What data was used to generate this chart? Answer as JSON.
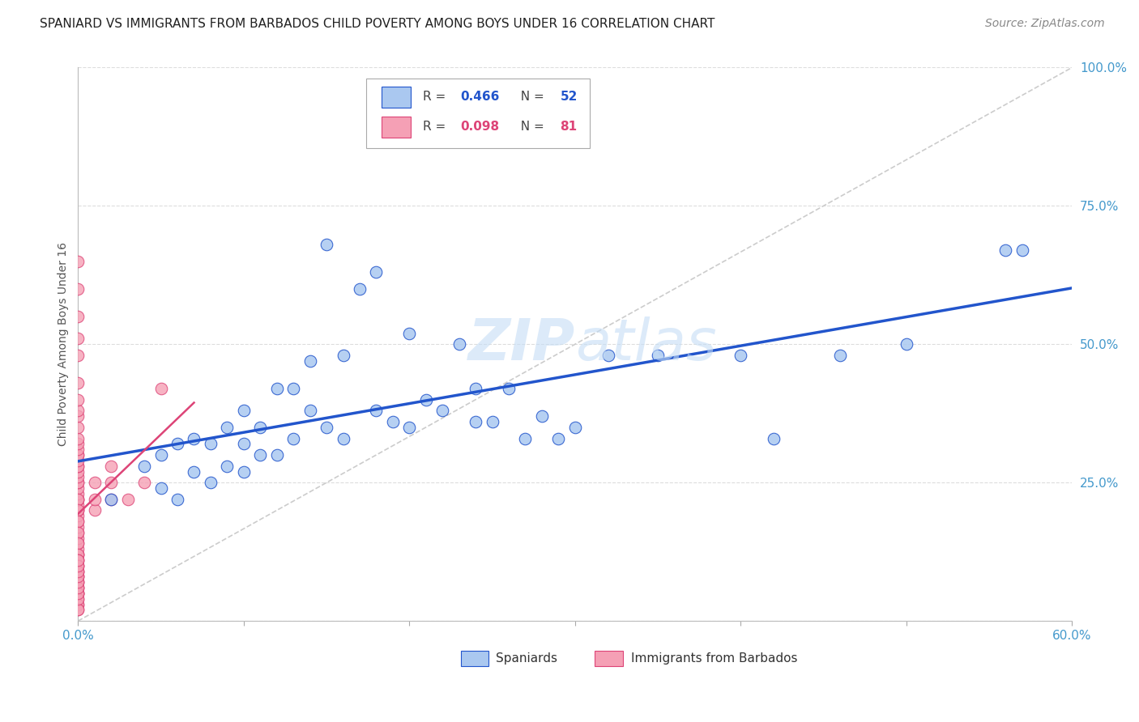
{
  "title": "SPANIARD VS IMMIGRANTS FROM BARBADOS CHILD POVERTY AMONG BOYS UNDER 16 CORRELATION CHART",
  "source": "Source: ZipAtlas.com",
  "ylabel": "Child Poverty Among Boys Under 16",
  "watermark": "ZIPatlas",
  "legend_blue_R": "0.466",
  "legend_blue_N": "52",
  "legend_pink_R": "0.098",
  "legend_pink_N": "81",
  "legend_blue_label": "Spaniards",
  "legend_pink_label": "Immigrants from Barbados",
  "xlim": [
    0.0,
    0.6
  ],
  "ylim": [
    0.0,
    1.0
  ],
  "blue_color": "#aac8f0",
  "blue_line_color": "#2255cc",
  "pink_color": "#f5a0b5",
  "pink_line_color": "#dd4477",
  "diag_line_color": "#cccccc",
  "background_color": "#ffffff",
  "blue_x": [
    0.02,
    0.04,
    0.05,
    0.05,
    0.06,
    0.06,
    0.07,
    0.07,
    0.08,
    0.08,
    0.09,
    0.09,
    0.1,
    0.1,
    0.1,
    0.11,
    0.11,
    0.12,
    0.12,
    0.13,
    0.13,
    0.14,
    0.14,
    0.15,
    0.15,
    0.16,
    0.16,
    0.17,
    0.18,
    0.18,
    0.19,
    0.2,
    0.2,
    0.21,
    0.22,
    0.23,
    0.24,
    0.24,
    0.25,
    0.26,
    0.27,
    0.28,
    0.29,
    0.3,
    0.32,
    0.35,
    0.4,
    0.42,
    0.46,
    0.5,
    0.56,
    0.57
  ],
  "blue_y": [
    0.22,
    0.28,
    0.24,
    0.3,
    0.22,
    0.32,
    0.27,
    0.33,
    0.25,
    0.32,
    0.28,
    0.35,
    0.27,
    0.32,
    0.38,
    0.3,
    0.35,
    0.3,
    0.42,
    0.33,
    0.42,
    0.38,
    0.47,
    0.35,
    0.68,
    0.33,
    0.48,
    0.6,
    0.38,
    0.63,
    0.36,
    0.35,
    0.52,
    0.4,
    0.38,
    0.5,
    0.36,
    0.42,
    0.36,
    0.42,
    0.33,
    0.37,
    0.33,
    0.35,
    0.48,
    0.48,
    0.48,
    0.33,
    0.48,
    0.5,
    0.67,
    0.67
  ],
  "pink_x": [
    0.0,
    0.0,
    0.0,
    0.0,
    0.0,
    0.0,
    0.0,
    0.0,
    0.0,
    0.0,
    0.0,
    0.0,
    0.0,
    0.0,
    0.0,
    0.0,
    0.0,
    0.0,
    0.0,
    0.0,
    0.0,
    0.0,
    0.0,
    0.0,
    0.0,
    0.0,
    0.0,
    0.0,
    0.0,
    0.0,
    0.0,
    0.0,
    0.0,
    0.0,
    0.0,
    0.0,
    0.0,
    0.0,
    0.0,
    0.0,
    0.0,
    0.0,
    0.0,
    0.0,
    0.0,
    0.0,
    0.0,
    0.0,
    0.0,
    0.0,
    0.0,
    0.0,
    0.0,
    0.0,
    0.0,
    0.0,
    0.0,
    0.0,
    0.0,
    0.0,
    0.0,
    0.0,
    0.0,
    0.0,
    0.0,
    0.0,
    0.0,
    0.0,
    0.0,
    0.0,
    0.0,
    0.0,
    0.01,
    0.01,
    0.01,
    0.02,
    0.02,
    0.02,
    0.03,
    0.04,
    0.05
  ],
  "pink_y": [
    0.05,
    0.06,
    0.07,
    0.08,
    0.09,
    0.1,
    0.11,
    0.12,
    0.12,
    0.13,
    0.14,
    0.15,
    0.16,
    0.17,
    0.18,
    0.19,
    0.2,
    0.2,
    0.21,
    0.22,
    0.22,
    0.23,
    0.24,
    0.25,
    0.25,
    0.26,
    0.27,
    0.28,
    0.28,
    0.29,
    0.3,
    0.3,
    0.31,
    0.32,
    0.33,
    0.35,
    0.37,
    0.38,
    0.4,
    0.43,
    0.48,
    0.51,
    0.55,
    0.6,
    0.65,
    0.22,
    0.2,
    0.18,
    0.16,
    0.14,
    0.12,
    0.11,
    0.1,
    0.09,
    0.08,
    0.07,
    0.06,
    0.05,
    0.05,
    0.04,
    0.03,
    0.03,
    0.02,
    0.02,
    0.04,
    0.05,
    0.06,
    0.07,
    0.08,
    0.09,
    0.1,
    0.11,
    0.2,
    0.22,
    0.25,
    0.22,
    0.25,
    0.28,
    0.22,
    0.25,
    0.42
  ],
  "title_fontsize": 11,
  "axis_label_fontsize": 10,
  "tick_fontsize": 11,
  "source_fontsize": 10,
  "watermark_fontsize": 52,
  "watermark_color": "#c5ddf5",
  "watermark_alpha": 0.6
}
